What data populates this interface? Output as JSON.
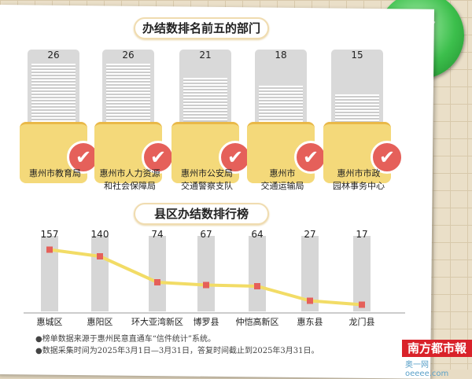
{
  "top_section": {
    "title": "办结数排名前五的部门",
    "departments": [
      {
        "name": "惠州市教育局",
        "count": 26
      },
      {
        "name": "惠州市人力资源\n和社会保障局",
        "count": 26
      },
      {
        "name": "惠州市公安局\n交通警察支队",
        "count": 21
      },
      {
        "name": "惠州市\n交通运输局",
        "count": 18
      },
      {
        "name": "惠州市市政\n园林事务中心",
        "count": 15
      }
    ]
  },
  "chart_data": {
    "type": "bar",
    "title": "县区办结数排行榜",
    "categories": [
      "惠城区",
      "惠阳区",
      "环大亚湾新区",
      "博罗县",
      "仲恺高新区",
      "惠东县",
      "龙门县"
    ],
    "values": [
      157,
      140,
      74,
      67,
      64,
      27,
      17
    ],
    "grid": false,
    "line_overlay": true,
    "colors": {
      "bar": "#d6d6d6",
      "line": "#f2dc66",
      "marker": "#e5605a"
    }
  },
  "notes": [
    "●榜单数据来源于惠州民意直通车“信件统计”系统。",
    "●数据采集时间为2025年3月1日—3月31日，答复时间截止到2025年3月31日。"
  ],
  "logo": "南方都市報",
  "watermark": "奥一网oeeee.com"
}
